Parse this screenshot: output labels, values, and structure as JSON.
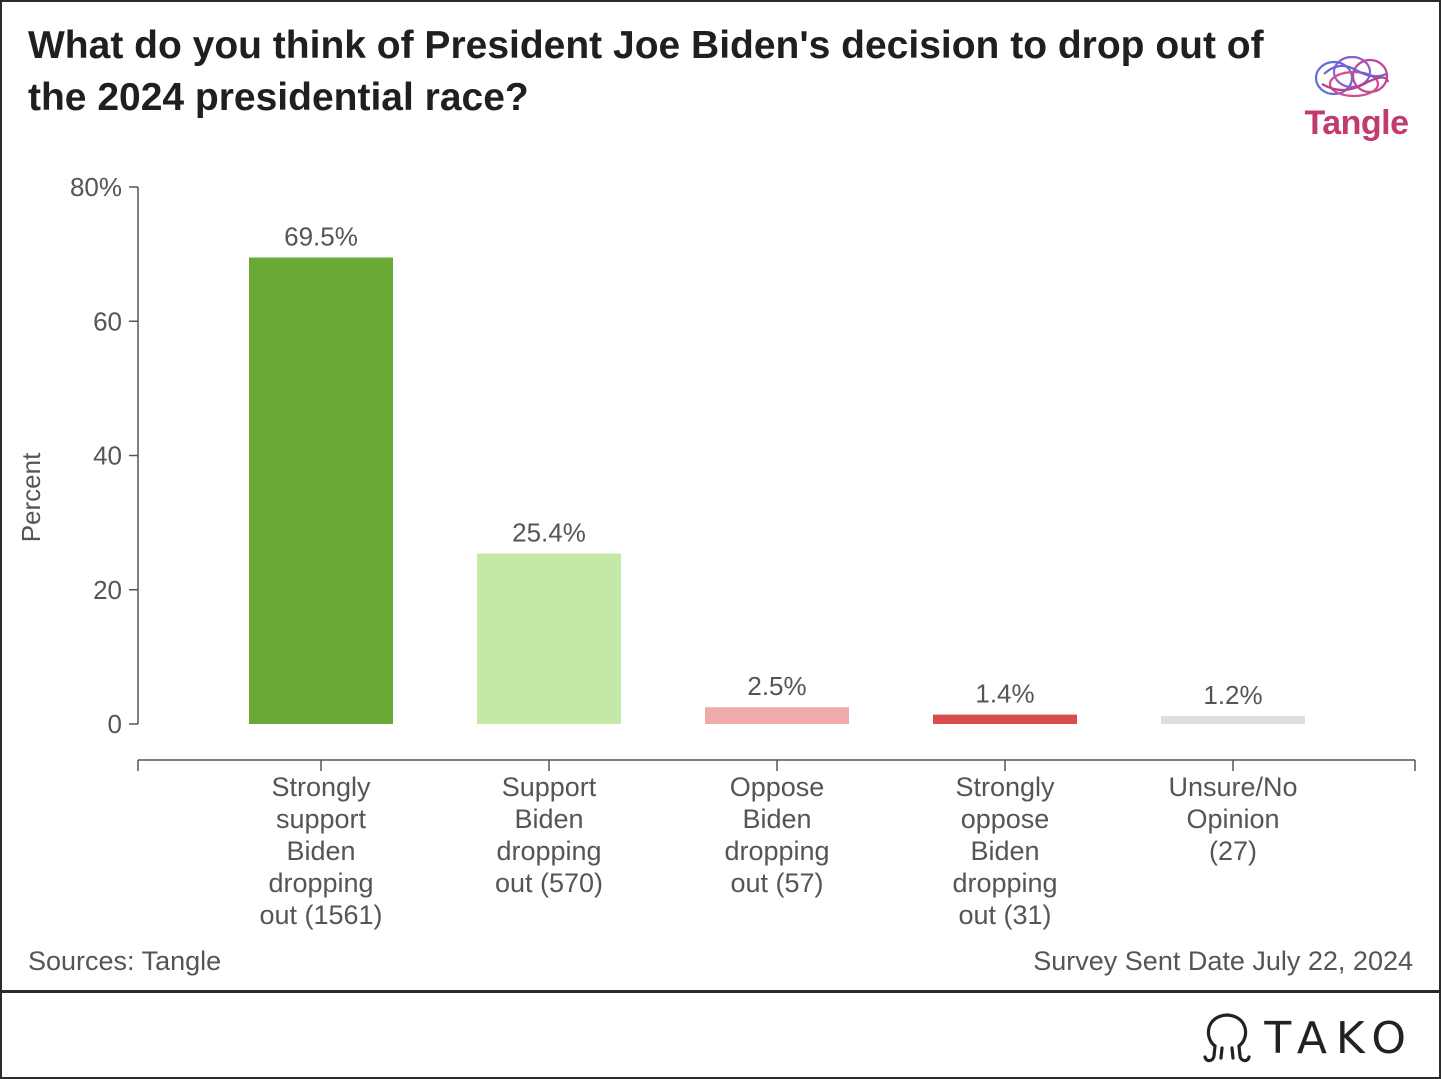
{
  "title": "What do you think of President Joe Biden's decision to drop out of the 2024 presidential race?",
  "logo": {
    "text": "Tangle",
    "icon": "brain-icon",
    "color": "#c33a6e"
  },
  "footer": {
    "sources": "Sources: Tangle",
    "survey_date": "Survey Sent Date July 22, 2024",
    "brand": "TAKO",
    "brand_icon": "tako-octopus-icon"
  },
  "chart_data": {
    "type": "bar",
    "ylabel": "Percent",
    "ylim": [
      0,
      80
    ],
    "yticks": [
      0,
      20,
      40,
      60,
      80
    ],
    "ytick_labels": [
      "0",
      "20",
      "40",
      "60",
      "80%"
    ],
    "grid": false,
    "categories": [
      "Strongly support Biden dropping out (1561)",
      "Support Biden dropping out (570)",
      "Oppose Biden dropping out (57)",
      "Strongly oppose Biden dropping out (31)",
      "Unsure/No Opinion (27)"
    ],
    "values": [
      69.5,
      25.4,
      2.5,
      1.4,
      1.2
    ],
    "value_labels": [
      "69.5%",
      "25.4%",
      "2.5%",
      "1.4%",
      "1.2%"
    ],
    "colors": [
      "#6aa935",
      "#c4e8a8",
      "#efaaaa",
      "#d94c4c",
      "#e0e0e0"
    ]
  }
}
